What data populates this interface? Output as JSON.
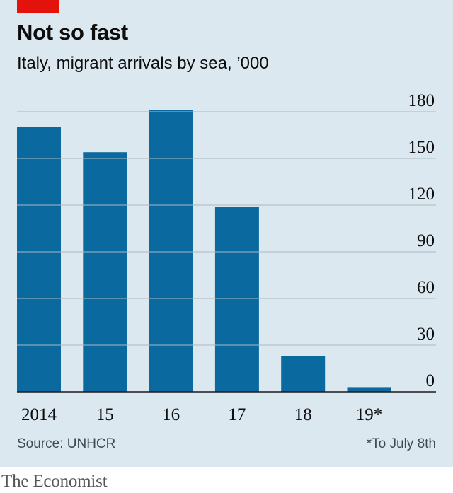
{
  "header": {
    "title": "Not so fast",
    "subtitle": "Italy, migrant arrivals by sea, ’000"
  },
  "footer": {
    "source": "Source: UNHCR",
    "note": "*To July 8th",
    "brand": "The Economist"
  },
  "colors": {
    "bar": "#0a6aa0",
    "background": "#dce8f0",
    "accent": "#e3120b",
    "grid": "#a9b8c2"
  },
  "chart_data": {
    "type": "bar",
    "categories": [
      "2014",
      "15",
      "16",
      "17",
      "18",
      "19*"
    ],
    "values": [
      170,
      154,
      181,
      119,
      23,
      3
    ],
    "title": "Not so fast",
    "subtitle": "Italy, migrant arrivals by sea, ’000",
    "ylim": [
      0,
      180
    ],
    "yticks": [
      0,
      30,
      60,
      90,
      120,
      150,
      180
    ],
    "y_axis_side": "right",
    "grid": true
  }
}
